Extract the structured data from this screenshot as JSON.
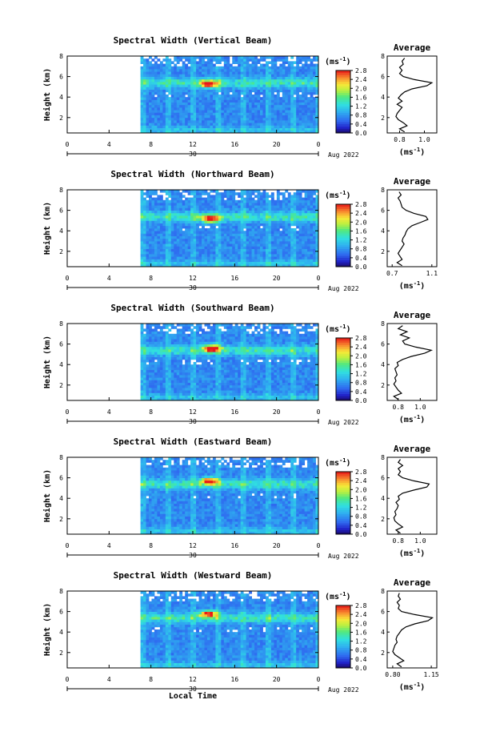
{
  "chart_data": [
    {
      "type": "heatmap",
      "title": "Spectral Width (Vertical Beam)",
      "ylabel": "Height (km)",
      "yticks": [
        "2",
        "4",
        "6",
        "8"
      ],
      "ylim": [
        0.5,
        8
      ],
      "xticks": [
        "0",
        "4",
        "8",
        "12",
        "16",
        "20",
        "0"
      ],
      "xlim": [
        0,
        24
      ],
      "date_day": "30",
      "date_month": "Aug 2022",
      "data_start_hour": 7,
      "peak": {
        "hour": 13.5,
        "height": 5.3
      },
      "colorbar": {
        "unit": "(ms-1)",
        "ticks": [
          "0.0",
          "0.4",
          "0.8",
          "1.2",
          "1.6",
          "2.0",
          "2.4",
          "2.8"
        ],
        "range": [
          0,
          2.8
        ]
      },
      "average": {
        "title": "Average",
        "unit": "(ms-1)",
        "xticks": [
          "0.8",
          "1.0"
        ],
        "xlim": [
          0.7,
          1.1
        ],
        "yticks": [
          "2",
          "4",
          "6",
          "8"
        ],
        "ylim": [
          0.5,
          8
        ],
        "profile": {
          "height": [
            0.6,
            0.9,
            1.2,
            1.5,
            1.8,
            2.1,
            2.4,
            2.7,
            3.0,
            3.3,
            3.6,
            3.9,
            4.2,
            4.5,
            4.8,
            5.1,
            5.4,
            5.7,
            6.0,
            6.3,
            6.6,
            6.9,
            7.2,
            7.5,
            7.8
          ],
          "width": [
            0.84,
            0.8,
            0.86,
            0.83,
            0.79,
            0.77,
            0.78,
            0.8,
            0.82,
            0.78,
            0.82,
            0.79,
            0.81,
            0.84,
            0.9,
            1.02,
            1.06,
            0.92,
            0.83,
            0.8,
            0.82,
            0.8,
            0.83,
            0.82,
            0.84
          ]
        }
      }
    },
    {
      "type": "heatmap",
      "title": "Spectral Width (Northward Beam)",
      "ylabel": "Height (km)",
      "yticks": [
        "2",
        "4",
        "6",
        "8"
      ],
      "ylim": [
        0.5,
        8
      ],
      "xticks": [
        "0",
        "4",
        "8",
        "12",
        "16",
        "20",
        "0"
      ],
      "xlim": [
        0,
        24
      ],
      "date_day": "30",
      "date_month": "Aug 2022",
      "data_start_hour": 7,
      "peak": {
        "hour": 13.7,
        "height": 5.2
      },
      "colorbar": {
        "unit": "(ms-1)",
        "ticks": [
          "0.0",
          "0.4",
          "0.8",
          "1.2",
          "1.6",
          "2.0",
          "2.4",
          "2.8"
        ],
        "range": [
          0,
          2.8
        ]
      },
      "average": {
        "title": "Average",
        "unit": "(ms-1)",
        "xticks": [
          "0.7",
          "1.1"
        ],
        "xlim": [
          0.65,
          1.15
        ],
        "yticks": [
          "2",
          "4",
          "6",
          "8"
        ],
        "ylim": [
          0.5,
          8
        ],
        "profile": {
          "height": [
            0.6,
            0.9,
            1.2,
            1.5,
            1.8,
            2.1,
            2.4,
            2.7,
            3.0,
            3.3,
            3.6,
            3.9,
            4.2,
            4.5,
            4.8,
            5.1,
            5.4,
            5.7,
            6.0,
            6.3,
            6.6,
            6.9,
            7.2,
            7.5,
            7.8
          ],
          "width": [
            0.8,
            0.75,
            0.8,
            0.78,
            0.76,
            0.78,
            0.8,
            0.82,
            0.8,
            0.81,
            0.83,
            0.84,
            0.86,
            0.9,
            0.98,
            1.06,
            1.04,
            0.92,
            0.84,
            0.8,
            0.79,
            0.78,
            0.76,
            0.79,
            0.77
          ]
        }
      }
    },
    {
      "type": "heatmap",
      "title": "Spectral Width (Southward Beam)",
      "ylabel": "Height (km)",
      "yticks": [
        "2",
        "4",
        "6",
        "8"
      ],
      "ylim": [
        0.5,
        8
      ],
      "xticks": [
        "0",
        "4",
        "8",
        "12",
        "16",
        "20",
        "0"
      ],
      "xlim": [
        0,
        24
      ],
      "date_day": "30",
      "date_month": "Aug 2022",
      "data_start_hour": 7,
      "peak": {
        "hour": 13.8,
        "height": 5.6
      },
      "colorbar": {
        "unit": "(ms-1)",
        "ticks": [
          "0.0",
          "0.4",
          "0.8",
          "1.2",
          "1.6",
          "2.0",
          "2.4",
          "2.8"
        ],
        "range": [
          0,
          2.8
        ]
      },
      "average": {
        "title": "Average",
        "unit": "(ms-1)",
        "xticks": [
          "0.8",
          "1.0"
        ],
        "xlim": [
          0.7,
          1.15
        ],
        "yticks": [
          "2",
          "4",
          "6",
          "8"
        ],
        "ylim": [
          0.5,
          8
        ],
        "profile": {
          "height": [
            0.6,
            0.9,
            1.2,
            1.5,
            1.8,
            2.1,
            2.4,
            2.7,
            3.0,
            3.3,
            3.6,
            3.9,
            4.2,
            4.5,
            4.8,
            5.1,
            5.4,
            5.7,
            6.0,
            6.3,
            6.6,
            6.9,
            7.2,
            7.5,
            7.8
          ],
          "width": [
            0.8,
            0.76,
            0.83,
            0.8,
            0.78,
            0.76,
            0.78,
            0.77,
            0.79,
            0.78,
            0.77,
            0.8,
            0.79,
            0.84,
            0.92,
            1.04,
            1.1,
            0.96,
            0.86,
            0.84,
            0.9,
            0.82,
            0.88,
            0.8,
            0.84
          ]
        }
      }
    },
    {
      "type": "heatmap",
      "title": "Spectral Width (Eastward Beam)",
      "ylabel": "Height (km)",
      "yticks": [
        "2",
        "4",
        "6",
        "8"
      ],
      "ylim": [
        0.5,
        8
      ],
      "xticks": [
        "0",
        "4",
        "8",
        "12",
        "16",
        "20",
        "0"
      ],
      "xlim": [
        0,
        24
      ],
      "date_day": "30",
      "date_month": "Aug 2022",
      "data_start_hour": 7,
      "peak": {
        "hour": 13.6,
        "height": 5.7
      },
      "colorbar": {
        "unit": "(ms-1)",
        "ticks": [
          "0.0",
          "0.4",
          "0.8",
          "1.2",
          "1.6",
          "2.0",
          "2.4",
          "2.8"
        ],
        "range": [
          0,
          2.8
        ]
      },
      "average": {
        "title": "Average",
        "unit": "(ms-1)",
        "xticks": [
          "0.8",
          "1.0"
        ],
        "xlim": [
          0.7,
          1.15
        ],
        "yticks": [
          "2",
          "4",
          "6",
          "8"
        ],
        "ylim": [
          0.5,
          8
        ],
        "profile": {
          "height": [
            0.6,
            0.9,
            1.2,
            1.5,
            1.8,
            2.1,
            2.4,
            2.7,
            3.0,
            3.3,
            3.6,
            3.9,
            4.2,
            4.5,
            4.8,
            5.1,
            5.4,
            5.7,
            6.0,
            6.3,
            6.6,
            6.9,
            7.2,
            7.5,
            7.8
          ],
          "width": [
            0.82,
            0.78,
            0.84,
            0.8,
            0.77,
            0.76,
            0.78,
            0.77,
            0.79,
            0.8,
            0.78,
            0.81,
            0.8,
            0.84,
            0.94,
            1.06,
            1.08,
            0.94,
            0.84,
            0.8,
            0.82,
            0.8,
            0.84,
            0.8,
            0.82
          ]
        }
      }
    },
    {
      "type": "heatmap",
      "title": "Spectral Width (Westward Beam)",
      "ylabel": "Height (km)",
      "xlabel": "Local Time",
      "yticks": [
        "2",
        "4",
        "6",
        "8"
      ],
      "ylim": [
        0.5,
        8
      ],
      "xticks": [
        "0",
        "4",
        "8",
        "12",
        "16",
        "20",
        "0"
      ],
      "xlim": [
        0,
        24
      ],
      "date_day": "30",
      "date_month": "Aug 2022",
      "data_start_hour": 7,
      "peak": {
        "hour": 13.5,
        "height": 5.8
      },
      "colorbar": {
        "unit": "(ms-1)",
        "ticks": [
          "0.0",
          "0.4",
          "0.8",
          "1.2",
          "1.6",
          "2.0",
          "2.4",
          "2.8"
        ],
        "range": [
          0,
          2.8
        ]
      },
      "average": {
        "title": "Average",
        "unit": "(ms-1)",
        "xticks": [
          "0.80",
          "1.15"
        ],
        "xlim": [
          0.75,
          1.2
        ],
        "yticks": [
          "2",
          "4",
          "6",
          "8"
        ],
        "ylim": [
          0.5,
          8
        ],
        "profile": {
          "height": [
            0.6,
            0.9,
            1.2,
            1.5,
            1.8,
            2.1,
            2.4,
            2.7,
            3.0,
            3.3,
            3.6,
            3.9,
            4.2,
            4.5,
            4.8,
            5.1,
            5.4,
            5.7,
            6.0,
            6.3,
            6.6,
            6.9,
            7.2,
            7.5,
            7.8
          ],
          "width": [
            0.88,
            0.84,
            0.9,
            0.86,
            0.82,
            0.8,
            0.81,
            0.82,
            0.84,
            0.83,
            0.84,
            0.86,
            0.88,
            0.92,
            1.0,
            1.12,
            1.16,
            1.0,
            0.88,
            0.85,
            0.86,
            0.84,
            0.87,
            0.85,
            0.86
          ]
        }
      }
    }
  ]
}
